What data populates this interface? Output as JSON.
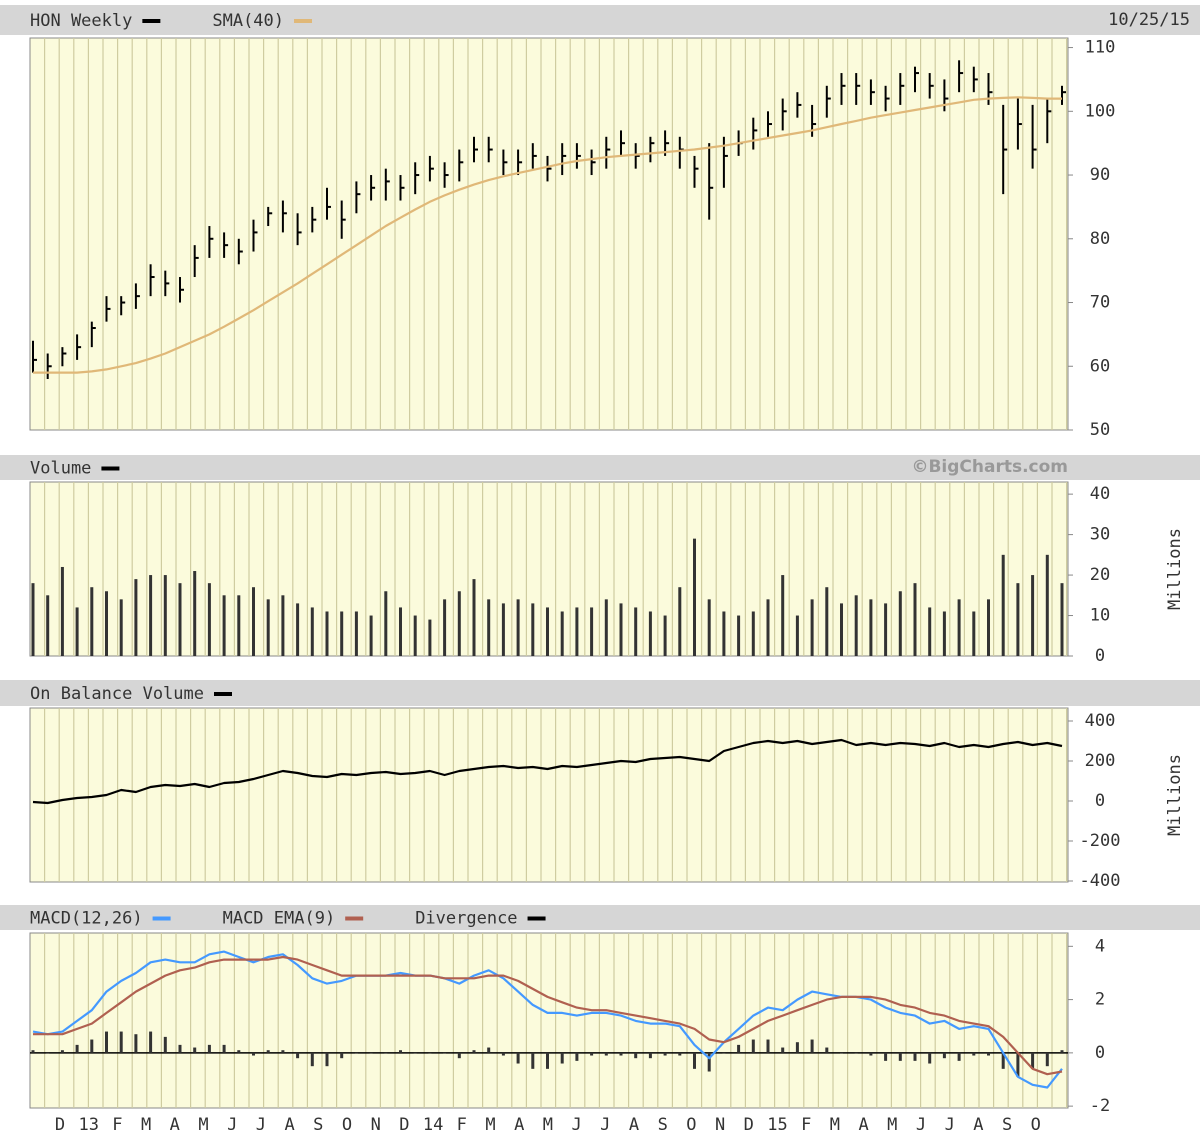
{
  "date": "10/25/15",
  "source": "©BigCharts.com",
  "x_labels": [
    "D",
    "13",
    "F",
    "M",
    "A",
    "M",
    "J",
    "J",
    "A",
    "S",
    "O",
    "N",
    "D",
    "14",
    "F",
    "M",
    "A",
    "M",
    "J",
    "J",
    "A",
    "S",
    "O",
    "N",
    "D",
    "15",
    "F",
    "M",
    "A",
    "M",
    "J",
    "J",
    "A",
    "S",
    "O"
  ],
  "chart_data": [
    {
      "type": "hlc",
      "ylim": [
        50,
        111.5
      ],
      "yticks": [
        50,
        60,
        70,
        80,
        90,
        100,
        110
      ],
      "grid": false,
      "series": [
        {
          "name": "HON Weekly",
          "color": "#000000",
          "style": "hlc",
          "high": [
            64,
            62,
            63,
            65,
            67,
            71,
            71,
            73,
            76,
            75,
            74,
            79,
            82,
            81,
            80,
            83,
            85,
            86,
            84,
            85,
            88,
            86,
            89,
            90,
            91,
            90,
            92,
            93,
            92,
            94,
            96,
            96,
            94,
            94,
            95,
            93,
            95,
            95,
            94,
            96,
            97,
            95,
            96,
            97,
            96,
            93,
            95,
            96,
            97,
            99,
            100,
            102,
            103,
            101,
            104,
            106,
            106,
            105,
            104,
            106,
            107,
            106,
            105,
            108,
            107,
            106,
            101,
            102,
            101,
            102,
            104
          ],
          "low": [
            59,
            58,
            60,
            61,
            63,
            67,
            68,
            69,
            71,
            71,
            70,
            74,
            77,
            77,
            76,
            78,
            82,
            81,
            79,
            81,
            83,
            80,
            84,
            86,
            86,
            86,
            87,
            89,
            88,
            89,
            92,
            92,
            90,
            90,
            91,
            89,
            90,
            91,
            90,
            91,
            93,
            91,
            92,
            93,
            91,
            88,
            83,
            88,
            93,
            94,
            96,
            97,
            99,
            96,
            99,
            101,
            101,
            101,
            100,
            101,
            103,
            102,
            100,
            103,
            103,
            101,
            87,
            94,
            91,
            95,
            101
          ],
          "close": [
            61,
            60,
            62,
            63,
            66,
            69,
            70,
            71,
            74,
            73,
            72,
            77,
            80,
            79,
            78,
            81,
            84,
            84,
            81,
            83,
            85,
            83,
            87,
            88,
            89,
            88,
            90,
            91,
            90,
            92,
            94,
            94,
            92,
            92,
            93,
            91,
            93,
            93,
            92,
            94,
            95,
            93,
            95,
            95,
            94,
            91,
            88,
            93,
            95,
            97,
            98,
            100,
            101,
            98,
            102,
            104,
            104,
            103,
            102,
            104,
            106,
            104,
            102,
            106,
            105,
            103,
            94,
            98,
            94,
            100,
            103
          ]
        },
        {
          "name": "SMA(40)",
          "color": "#e0b878",
          "style": "line",
          "values": [
            59,
            59,
            59,
            59,
            59.2,
            59.5,
            60,
            60.5,
            61.2,
            62,
            63,
            64,
            65,
            66.2,
            67.5,
            68.8,
            70.2,
            71.6,
            73,
            74.5,
            76,
            77.5,
            79,
            80.5,
            82,
            83.3,
            84.6,
            85.8,
            86.8,
            87.7,
            88.5,
            89.2,
            89.8,
            90.3,
            90.8,
            91.3,
            91.8,
            92.2,
            92.5,
            92.8,
            93,
            93.2,
            93.4,
            93.6,
            93.8,
            94,
            94.3,
            94.6,
            95,
            95.4,
            95.8,
            96.2,
            96.6,
            97,
            97.5,
            98,
            98.5,
            99,
            99.4,
            99.8,
            100.2,
            100.6,
            101,
            101.4,
            101.8,
            102,
            102.1,
            102.2,
            102.1,
            102,
            102
          ]
        }
      ]
    },
    {
      "type": "bar",
      "ylim": [
        0,
        43
      ],
      "yticks": [
        0,
        10,
        20,
        30,
        40
      ],
      "grid": false,
      "y_label": "Millions",
      "series": [
        {
          "name": "Volume",
          "color": "#000000",
          "style": "bar",
          "values": [
            18,
            15,
            22,
            12,
            17,
            16,
            14,
            19,
            20,
            20,
            18,
            21,
            18,
            15,
            15,
            17,
            14,
            15,
            13,
            12,
            11,
            11,
            11,
            10,
            16,
            12,
            10,
            9,
            14,
            16,
            19,
            14,
            13,
            14,
            13,
            12,
            11,
            12,
            12,
            14,
            13,
            12,
            11,
            10,
            17,
            29,
            14,
            11,
            10,
            11,
            14,
            20,
            10,
            14,
            17,
            13,
            15,
            14,
            13,
            16,
            18,
            12,
            11,
            14,
            11,
            14,
            25,
            18,
            20,
            25,
            18
          ]
        }
      ]
    },
    {
      "type": "line",
      "ylim": [
        -405,
        465
      ],
      "yticks": [
        -400,
        -200,
        0,
        200,
        400
      ],
      "grid": false,
      "y_label": "Millions",
      "series": [
        {
          "name": "On Balance Volume",
          "color": "#000000",
          "style": "line",
          "values": [
            -5,
            -10,
            5,
            15,
            20,
            30,
            55,
            45,
            70,
            80,
            75,
            85,
            70,
            90,
            95,
            110,
            130,
            150,
            140,
            125,
            120,
            135,
            130,
            140,
            145,
            135,
            140,
            150,
            130,
            150,
            160,
            170,
            175,
            165,
            170,
            160,
            175,
            170,
            180,
            190,
            200,
            195,
            210,
            215,
            220,
            210,
            200,
            250,
            270,
            290,
            300,
            290,
            300,
            285,
            295,
            305,
            280,
            290,
            280,
            290,
            285,
            275,
            290,
            270,
            280,
            270,
            285,
            295,
            280,
            290,
            275
          ]
        }
      ]
    },
    {
      "type": "line",
      "ylim": [
        -2.07,
        4.5
      ],
      "yticks": [
        -2,
        0,
        2,
        4
      ],
      "grid": false,
      "series": [
        {
          "name": "MACD(12,26)",
          "color": "#4499ff",
          "style": "line",
          "values": [
            0.8,
            0.7,
            0.8,
            1.2,
            1.6,
            2.3,
            2.7,
            3.0,
            3.4,
            3.5,
            3.4,
            3.4,
            3.7,
            3.8,
            3.6,
            3.4,
            3.6,
            3.7,
            3.3,
            2.8,
            2.6,
            2.7,
            2.9,
            2.9,
            2.9,
            3.0,
            2.9,
            2.9,
            2.8,
            2.6,
            2.9,
            3.1,
            2.8,
            2.3,
            1.8,
            1.5,
            1.5,
            1.4,
            1.5,
            1.5,
            1.4,
            1.2,
            1.1,
            1.1,
            1.0,
            0.3,
            -0.2,
            0.4,
            0.9,
            1.4,
            1.7,
            1.6,
            2.0,
            2.3,
            2.2,
            2.1,
            2.1,
            2.0,
            1.7,
            1.5,
            1.4,
            1.1,
            1.2,
            0.9,
            1.0,
            0.9,
            0.0,
            -0.9,
            -1.2,
            -1.3,
            -0.6
          ]
        },
        {
          "name": "MACD EMA(9)",
          "color": "#b06050",
          "style": "line",
          "values": [
            0.7,
            0.7,
            0.7,
            0.9,
            1.1,
            1.5,
            1.9,
            2.3,
            2.6,
            2.9,
            3.1,
            3.2,
            3.4,
            3.5,
            3.5,
            3.5,
            3.5,
            3.6,
            3.5,
            3.3,
            3.1,
            2.9,
            2.9,
            2.9,
            2.9,
            2.9,
            2.9,
            2.9,
            2.8,
            2.8,
            2.8,
            2.9,
            2.9,
            2.7,
            2.4,
            2.1,
            1.9,
            1.7,
            1.6,
            1.6,
            1.5,
            1.4,
            1.3,
            1.2,
            1.1,
            0.9,
            0.5,
            0.4,
            0.6,
            0.9,
            1.2,
            1.4,
            1.6,
            1.8,
            2.0,
            2.1,
            2.1,
            2.1,
            2.0,
            1.8,
            1.7,
            1.5,
            1.4,
            1.2,
            1.1,
            1.0,
            0.6,
            0.0,
            -0.6,
            -0.8,
            -0.7
          ]
        },
        {
          "name": "Divergence",
          "color": "#000000",
          "style": "bar",
          "values": [
            0.1,
            0,
            0.1,
            0.3,
            0.5,
            0.8,
            0.8,
            0.7,
            0.8,
            0.6,
            0.3,
            0.2,
            0.3,
            0.3,
            0.1,
            -0.1,
            0.1,
            0.1,
            -0.2,
            -0.5,
            -0.5,
            -0.2,
            0,
            0,
            0,
            0.1,
            0,
            0,
            0,
            -0.2,
            0.1,
            0.2,
            -0.1,
            -0.4,
            -0.6,
            -0.6,
            -0.4,
            -0.3,
            -0.1,
            -0.1,
            -0.1,
            -0.2,
            -0.2,
            -0.1,
            -0.1,
            -0.6,
            -0.7,
            0,
            0.3,
            0.5,
            0.5,
            0.2,
            0.4,
            0.5,
            0.2,
            0,
            0,
            -0.1,
            -0.3,
            -0.3,
            -0.3,
            -0.4,
            -0.2,
            -0.3,
            -0.1,
            -0.1,
            -0.6,
            -0.9,
            -0.6,
            -0.5,
            0.1
          ]
        }
      ]
    }
  ]
}
